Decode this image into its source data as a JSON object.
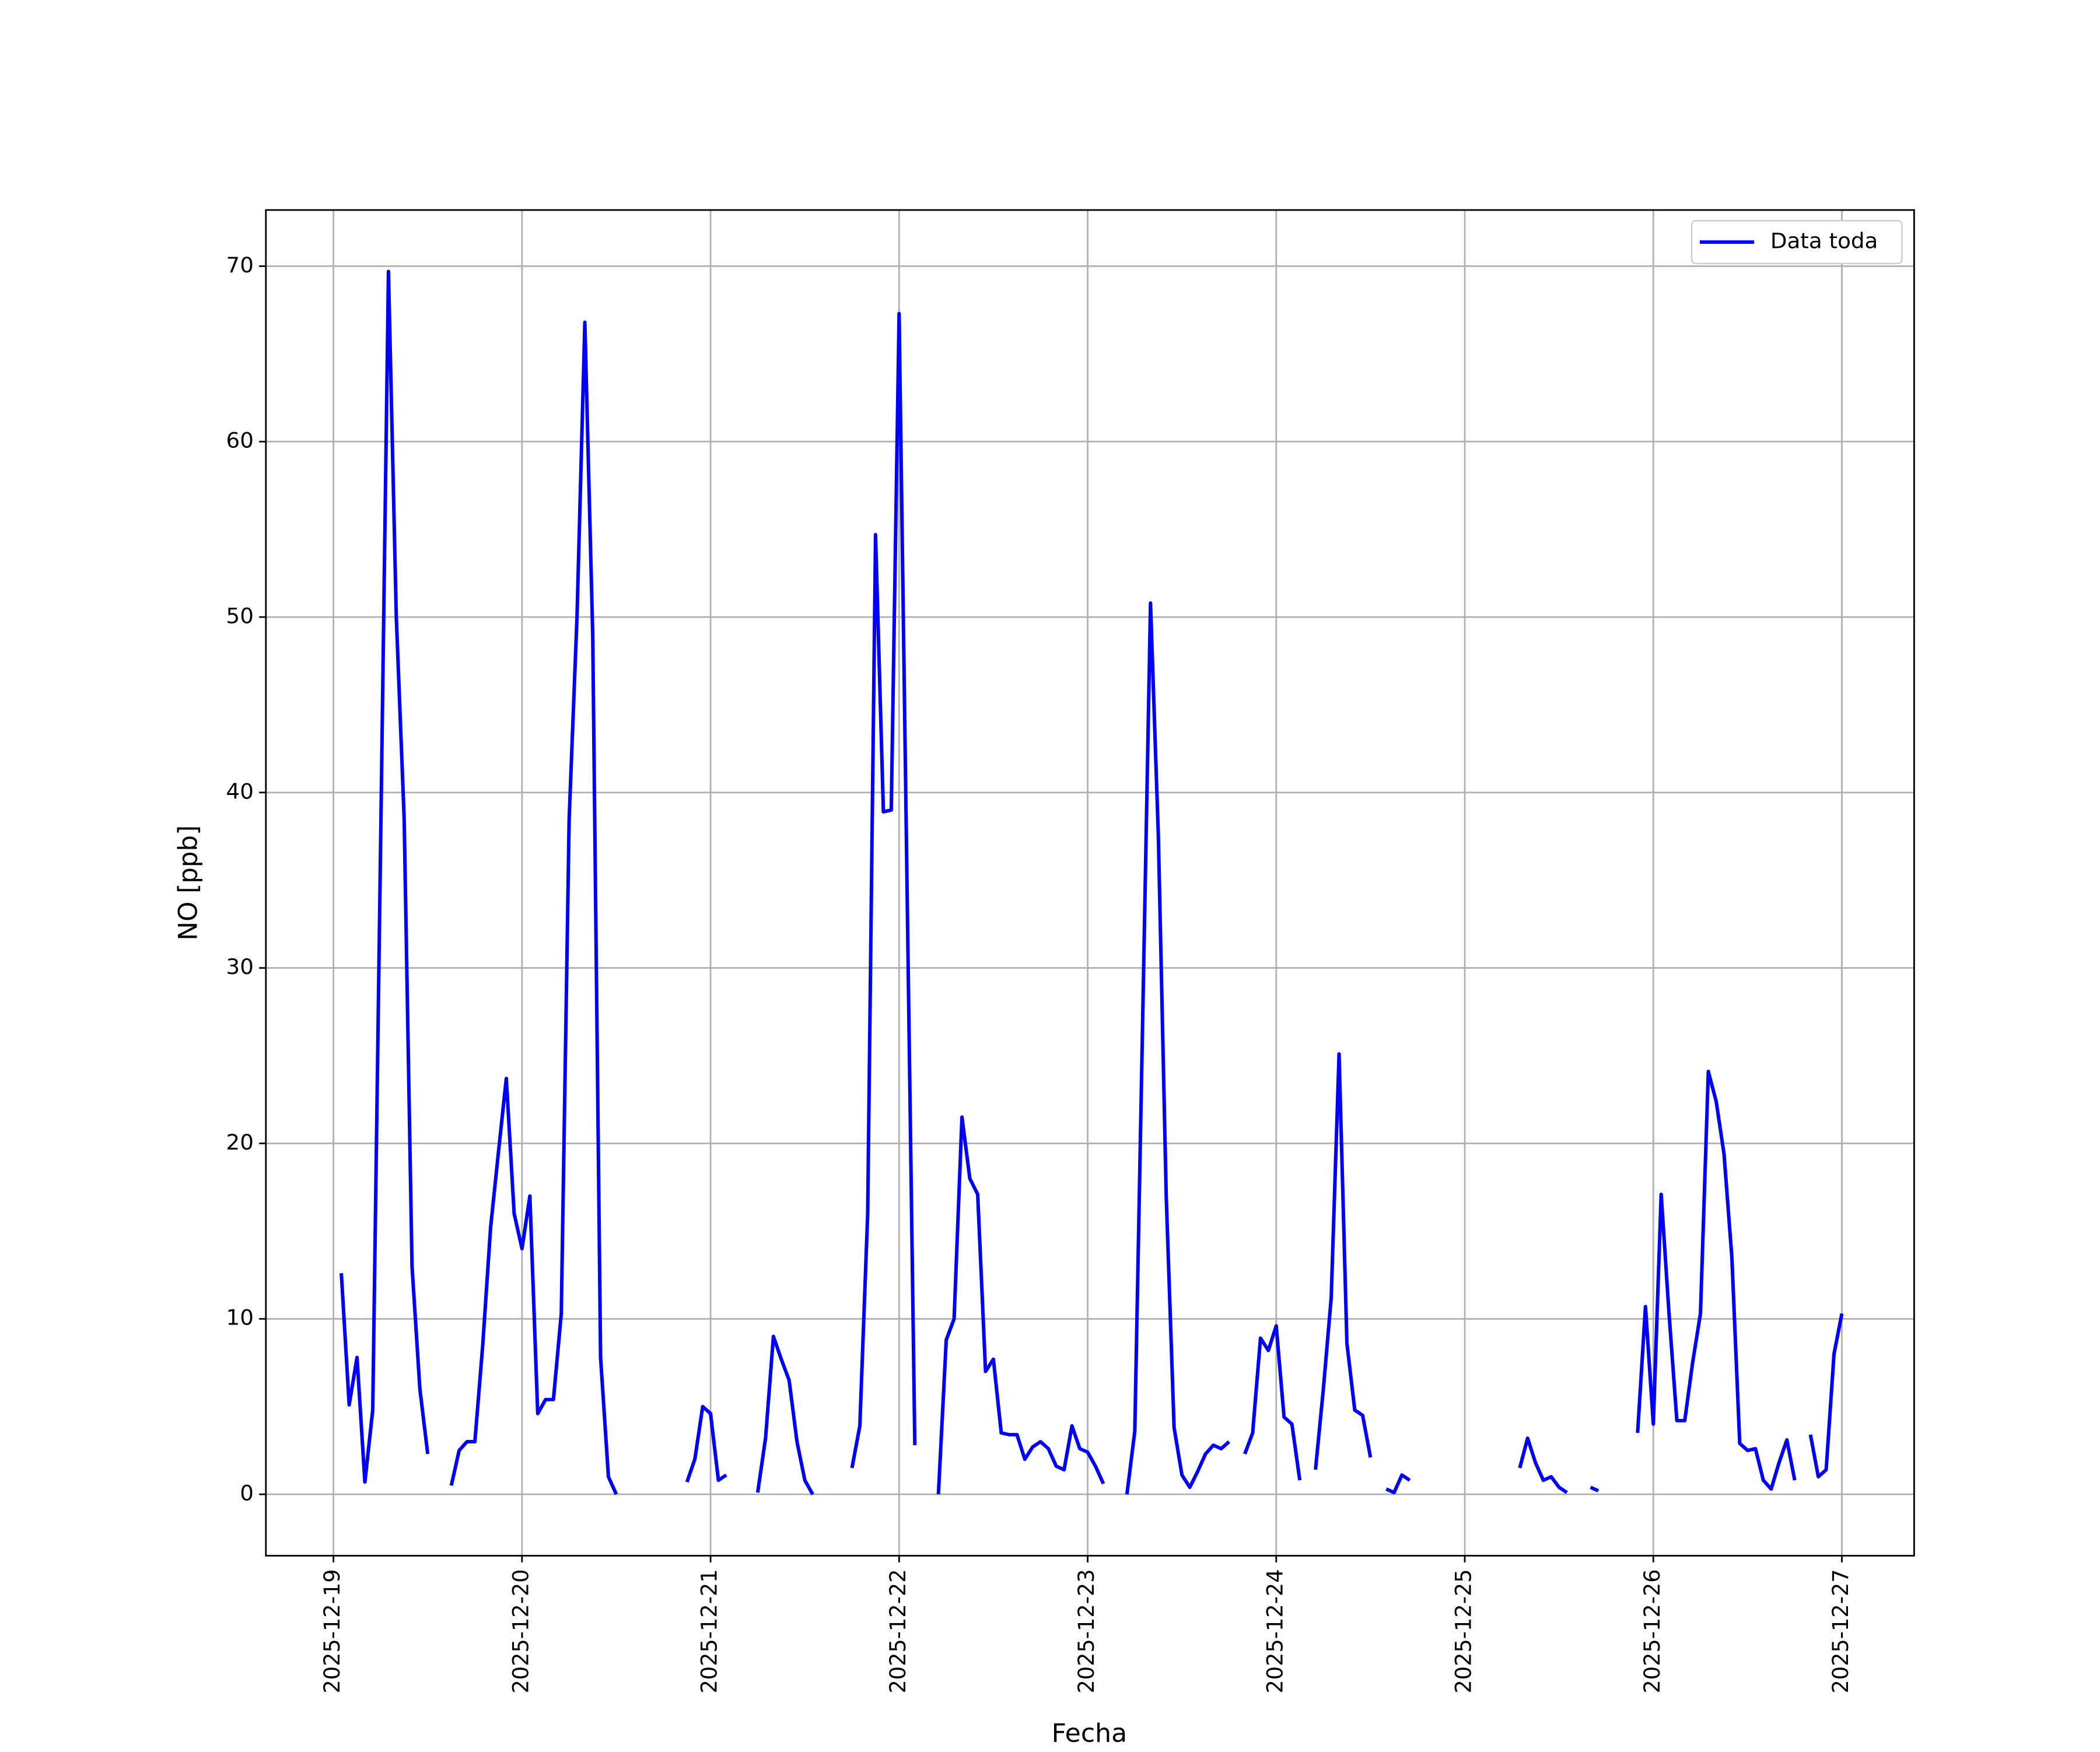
{
  "chart_data": {
    "type": "line",
    "xlabel": "Fecha",
    "ylabel": "NO [ppb]",
    "x": [
      "2025-12-19 00:00",
      "2025-12-19 01:00",
      "2025-12-19 02:00",
      "2025-12-19 03:00",
      "2025-12-19 04:00",
      "2025-12-19 05:00",
      "2025-12-19 06:00",
      "2025-12-19 07:00",
      "2025-12-19 08:00",
      "2025-12-19 09:00",
      "2025-12-19 10:00",
      "2025-12-19 11:00",
      "2025-12-19 12:00",
      "2025-12-19 13:00",
      "2025-12-19 14:00",
      "2025-12-19 15:00",
      "2025-12-19 16:00",
      "2025-12-19 17:00",
      "2025-12-19 18:00",
      "2025-12-19 19:00",
      "2025-12-19 20:00",
      "2025-12-19 21:00",
      "2025-12-19 22:00",
      "2025-12-19 23:00",
      "2025-12-20 00:00",
      "2025-12-20 01:00",
      "2025-12-20 02:00",
      "2025-12-20 03:00",
      "2025-12-20 04:00",
      "2025-12-20 05:00",
      "2025-12-20 06:00",
      "2025-12-20 07:00",
      "2025-12-20 08:00",
      "2025-12-20 09:00",
      "2025-12-20 10:00",
      "2025-12-20 11:00",
      "2025-12-20 12:00",
      "2025-12-20 13:00",
      "2025-12-20 14:00",
      "2025-12-20 15:00",
      "2025-12-20 16:00",
      "2025-12-20 17:00",
      "2025-12-20 18:00",
      "2025-12-20 19:00",
      "2025-12-20 20:00",
      "2025-12-20 21:00",
      "2025-12-20 22:00",
      "2025-12-20 23:00",
      "2025-12-21 00:00",
      "2025-12-21 01:00",
      "2025-12-21 02:00",
      "2025-12-21 03:00",
      "2025-12-21 04:00",
      "2025-12-21 05:00",
      "2025-12-21 06:00",
      "2025-12-21 07:00",
      "2025-12-21 08:00",
      "2025-12-21 09:00",
      "2025-12-21 10:00",
      "2025-12-21 11:00",
      "2025-12-21 12:00",
      "2025-12-21 13:00",
      "2025-12-21 14:00",
      "2025-12-21 15:00",
      "2025-12-21 16:00",
      "2025-12-21 17:00",
      "2025-12-21 18:00",
      "2025-12-21 19:00",
      "2025-12-21 20:00",
      "2025-12-21 21:00",
      "2025-12-21 22:00",
      "2025-12-21 23:00",
      "2025-12-22 00:00",
      "2025-12-22 01:00",
      "2025-12-22 02:00",
      "2025-12-22 03:00",
      "2025-12-22 04:00",
      "2025-12-22 05:00",
      "2025-12-22 06:00",
      "2025-12-22 07:00",
      "2025-12-22 08:00",
      "2025-12-22 09:00",
      "2025-12-22 10:00",
      "2025-12-22 11:00",
      "2025-12-22 12:00",
      "2025-12-22 13:00",
      "2025-12-22 14:00",
      "2025-12-22 15:00",
      "2025-12-22 16:00",
      "2025-12-22 17:00",
      "2025-12-22 18:00",
      "2025-12-22 19:00",
      "2025-12-22 20:00",
      "2025-12-22 21:00",
      "2025-12-22 22:00",
      "2025-12-22 23:00",
      "2025-12-23 00:00",
      "2025-12-23 01:00",
      "2025-12-23 02:00",
      "2025-12-23 03:00",
      "2025-12-23 04:00",
      "2025-12-23 05:00",
      "2025-12-23 06:00",
      "2025-12-23 07:00",
      "2025-12-23 08:00",
      "2025-12-23 09:00",
      "2025-12-23 10:00",
      "2025-12-23 11:00",
      "2025-12-23 12:00",
      "2025-12-23 13:00",
      "2025-12-23 14:00",
      "2025-12-23 15:00",
      "2025-12-23 16:00",
      "2025-12-23 17:00",
      "2025-12-23 18:00",
      "2025-12-23 19:00",
      "2025-12-23 20:00",
      "2025-12-23 21:00",
      "2025-12-23 22:00",
      "2025-12-23 23:00",
      "2025-12-24 00:00",
      "2025-12-24 01:00",
      "2025-12-24 02:00",
      "2025-12-24 03:00",
      "2025-12-24 04:00",
      "2025-12-24 05:00",
      "2025-12-24 06:00",
      "2025-12-24 07:00",
      "2025-12-24 08:00",
      "2025-12-24 09:00",
      "2025-12-24 10:00",
      "2025-12-24 11:00",
      "2025-12-24 12:00",
      "2025-12-24 13:00",
      "2025-12-24 14:00",
      "2025-12-24 15:00",
      "2025-12-24 16:00",
      "2025-12-24 17:00",
      "2025-12-24 18:00",
      "2025-12-24 19:00",
      "2025-12-24 20:00",
      "2025-12-24 21:00",
      "2025-12-24 22:00",
      "2025-12-24 23:00",
      "2025-12-25 00:00",
      "2025-12-25 01:00",
      "2025-12-25 02:00",
      "2025-12-25 03:00",
      "2025-12-25 04:00",
      "2025-12-25 05:00",
      "2025-12-25 06:00",
      "2025-12-25 07:00",
      "2025-12-25 08:00",
      "2025-12-25 09:00",
      "2025-12-25 10:00",
      "2025-12-25 11:00",
      "2025-12-25 12:00",
      "2025-12-25 13:00",
      "2025-12-25 14:00",
      "2025-12-25 15:00",
      "2025-12-25 16:00",
      "2025-12-25 17:00",
      "2025-12-25 18:00",
      "2025-12-25 19:00",
      "2025-12-25 20:00",
      "2025-12-25 21:00",
      "2025-12-25 22:00",
      "2025-12-25 23:00",
      "2025-12-26 00:00",
      "2025-12-26 01:00",
      "2025-12-26 02:00",
      "2025-12-26 03:00",
      "2025-12-26 04:00",
      "2025-12-26 05:00",
      "2025-12-26 06:00",
      "2025-12-26 07:00",
      "2025-12-26 08:00",
      "2025-12-26 09:00",
      "2025-12-26 10:00",
      "2025-12-26 11:00",
      "2025-12-26 12:00",
      "2025-12-26 13:00",
      "2025-12-26 14:00",
      "2025-12-26 15:00",
      "2025-12-26 16:00",
      "2025-12-26 17:00",
      "2025-12-26 18:00",
      "2025-12-26 19:00",
      "2025-12-26 20:00",
      "2025-12-26 21:00",
      "2025-12-26 22:00",
      "2025-12-26 23:00",
      "2025-12-27 00:00"
    ],
    "series": [
      {
        "name": "Data toda",
        "color": "#0000ff",
        "values": [
          null,
          12.6,
          5.1,
          7.8,
          0.7,
          4.8,
          37,
          69.7,
          50,
          38.5,
          13,
          6,
          2.3,
          null,
          null,
          0.5,
          2.5,
          3,
          3,
          8.5,
          15.2,
          19.5,
          23.7,
          16,
          14,
          17,
          4.6,
          5.4,
          5.4,
          10.3,
          38.5,
          50,
          66.8,
          49,
          7.8,
          1,
          0,
          null,
          null,
          null,
          null,
          null,
          null,
          null,
          null,
          0.7,
          2,
          5,
          4.6,
          0.8,
          1.1,
          null,
          null,
          null,
          0.1,
          3.2,
          9,
          7.7,
          6.5,
          3,
          0.8,
          0,
          null,
          null,
          null,
          null,
          1.5,
          3.9,
          16,
          54.7,
          38.9,
          39,
          67.3,
          35,
          2.8,
          null,
          null,
          0,
          8.8,
          10,
          21.5,
          18,
          17.1,
          7,
          7.7,
          3.5,
          3.4,
          3.4,
          2,
          2.7,
          3,
          2.6,
          1.6,
          1.4,
          3.9,
          2.6,
          2.4,
          1.6,
          0.6,
          null,
          null,
          0,
          3.6,
          27,
          50.8,
          37.5,
          17,
          3.8,
          1.1,
          0.4,
          1.3,
          2.3,
          2.8,
          2.6,
          3,
          null,
          2.3,
          3.5,
          8.9,
          8.2,
          9.6,
          4.4,
          4,
          0.8,
          null,
          1.4,
          6,
          11.2,
          25.1,
          8.6,
          4.8,
          4.5,
          2.1,
          null,
          0.3,
          0.1,
          1.1,
          0.8,
          null,
          null,
          null,
          null,
          null,
          null,
          null,
          null,
          null,
          null,
          null,
          null,
          null,
          1.5,
          3.2,
          1.8,
          0.8,
          1,
          0.4,
          0.1,
          null,
          null,
          0.4,
          0.2,
          null,
          null,
          null,
          null,
          3.5,
          10.7,
          4,
          17.1,
          10.3,
          4.2,
          4.2,
          7.5,
          10.3,
          24.1,
          22.4,
          19.4,
          13.5,
          2.9,
          2.5,
          2.6,
          0.8,
          0.3,
          1.8,
          3.1,
          0.8,
          null,
          3.4,
          1,
          1.4,
          8,
          10.3
        ]
      }
    ],
    "xlim": [
      "2025-12-18 15:24",
      "2025-12-27 09:12"
    ],
    "xticks": [
      "2025-12-19",
      "2025-12-20",
      "2025-12-21",
      "2025-12-22",
      "2025-12-23",
      "2025-12-24",
      "2025-12-25",
      "2025-12-26",
      "2025-12-27"
    ],
    "ylim": [
      -3.5,
      73.2
    ],
    "yticks": [
      0,
      10,
      20,
      30,
      40,
      50,
      60,
      70
    ],
    "grid": true,
    "legend": "upper right"
  }
}
